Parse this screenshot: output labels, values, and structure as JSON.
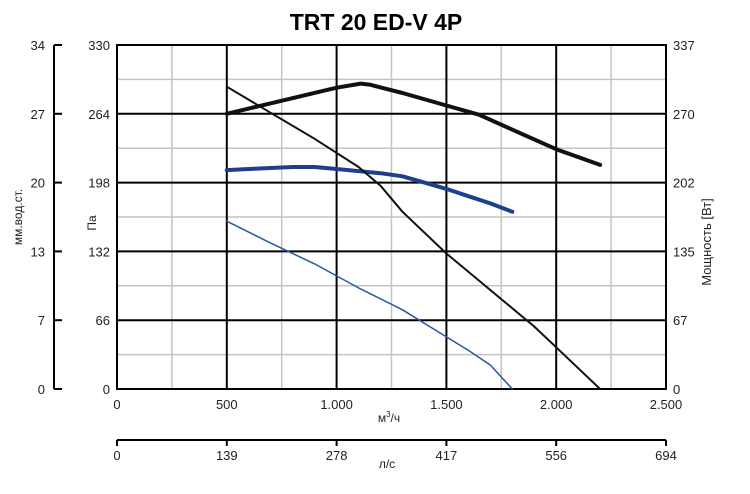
{
  "chart_data": {
    "type": "line",
    "title": "TRT 20 ED-V 4P",
    "xlabel": "м³/ч",
    "xlabel_base": "м",
    "xlabel_sup": "3",
    "xlabel_rest": "/ч",
    "x2label": "л/с",
    "ylabel_left_outer": "мм.вод.ст.",
    "ylabel_left_inner": "Па",
    "ylabel_right": "Мощность [Вт]",
    "xlim": [
      0,
      2500
    ],
    "ylim": [
      0,
      330
    ],
    "x_ticks": [
      0,
      500,
      1000,
      1500,
      2000,
      2500
    ],
    "x_tick_labels": [
      "0",
      "500",
      "1.000",
      "1.500",
      "2.000",
      "2.500"
    ],
    "x2_ticks": [
      0,
      500,
      1000,
      1500,
      2000,
      2500
    ],
    "x2_tick_labels": [
      "0",
      "139",
      "278",
      "417",
      "556",
      "694"
    ],
    "y_ticks": [
      0,
      66,
      132,
      198,
      264,
      330
    ],
    "y_pa_labels": [
      "0",
      "66",
      "132",
      "198",
      "264",
      "330"
    ],
    "y_mm_labels": [
      "0",
      "7",
      "13",
      "20",
      "27",
      "34"
    ],
    "y_w_labels": [
      "0",
      "67",
      "135",
      "202",
      "270",
      "337"
    ],
    "grid": true,
    "series": [
      {
        "color": "#111111",
        "width": 4,
        "x": [
          500,
          1000,
          1110,
          1150,
          1300,
          1500,
          1650,
          1850,
          2000,
          2200
        ],
        "y": [
          264,
          289,
          293,
          292,
          284,
          272,
          263,
          244,
          230,
          215
        ]
      },
      {
        "color": "#1f3f8a",
        "width": 4,
        "x": [
          500,
          600,
          700,
          800,
          900,
          1000,
          1100,
          1200,
          1300,
          1400,
          1500,
          1600,
          1700,
          1800
        ],
        "y": [
          210,
          211,
          212,
          213,
          213,
          211,
          209,
          207,
          204,
          198,
          192,
          185,
          178,
          170
        ]
      },
      {
        "color": "#111111",
        "width": 2,
        "x": [
          500,
          700,
          900,
          1100,
          1200,
          1300,
          1500,
          1700,
          1900,
          2000,
          2100,
          2200
        ],
        "y": [
          290,
          265,
          240,
          213,
          195,
          170,
          130,
          95,
          60,
          40,
          20,
          0
        ]
      },
      {
        "color": "#2a55a5",
        "width": 1.5,
        "x": [
          500,
          700,
          900,
          1100,
          1300,
          1500,
          1600,
          1700,
          1800
        ],
        "y": [
          161,
          140,
          120,
          97,
          76,
          50,
          37,
          23,
          0
        ]
      }
    ]
  }
}
